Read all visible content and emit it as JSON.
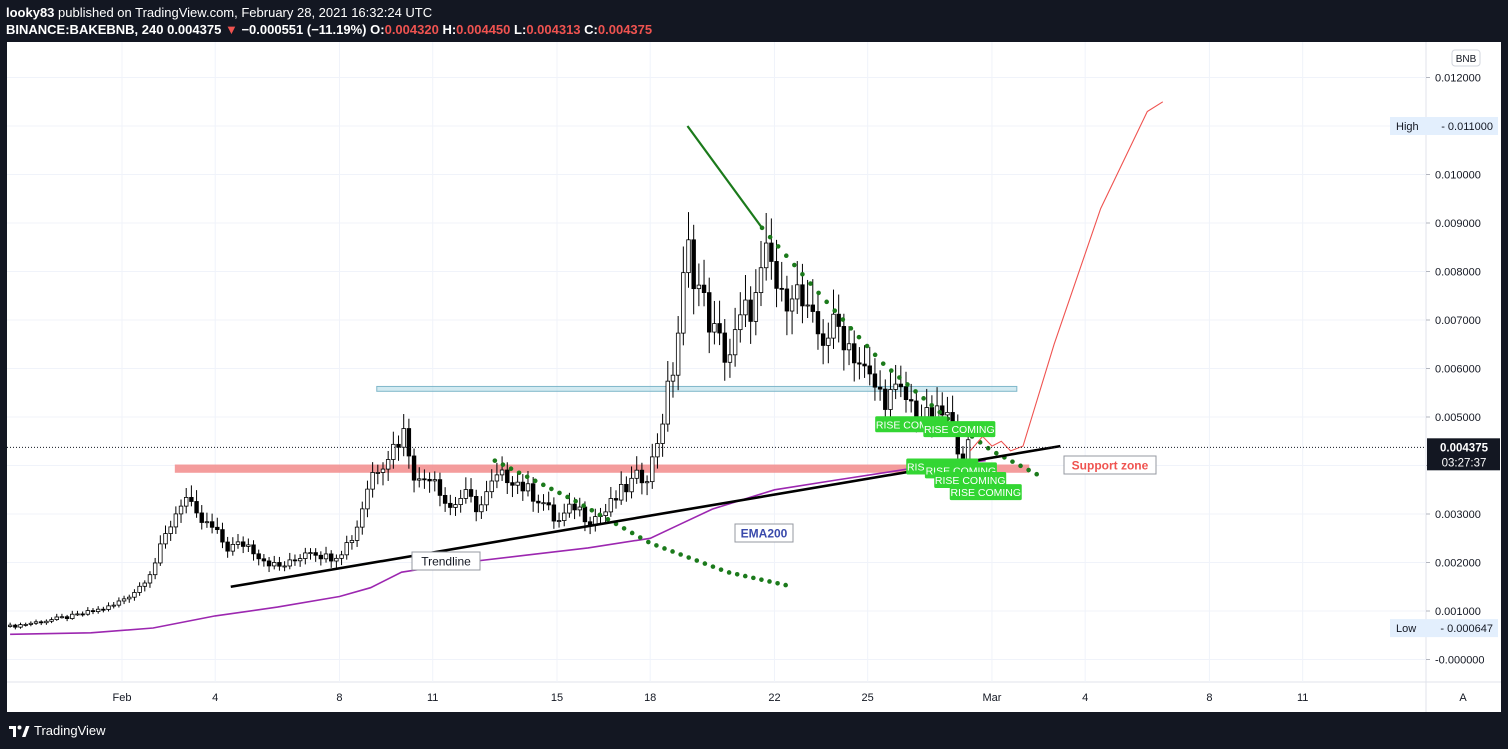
{
  "header": {
    "publisher": "looky83",
    "published_text": " published on TradingView.com, February 28, 2021 16:32:24 UTC",
    "symbol": "BINANCE:BAKEBNB, 240",
    "last": "0.004375",
    "change_arrow": "▼",
    "change": "−0.000551 (−11.19%)",
    "o_label": "O:",
    "o_value": "0.004320",
    "h_label": "H:",
    "h_value": "0.004450",
    "l_label": "L:",
    "l_value": "0.004313",
    "c_label": "C:",
    "c_value": "0.004375"
  },
  "footer": {
    "brand": "TradingView",
    "logo_icon": "tradingview-logo-icon"
  },
  "chart_data": {
    "type": "candlestick",
    "currency_label": "BNB",
    "auto_scale_label": "A",
    "ylim": [
      -0.0002,
      0.0125
    ],
    "y_ticks": [
      "0.012000",
      "0.011000",
      "0.010000",
      "0.009000",
      "0.008000",
      "0.007000",
      "0.006000",
      "0.005000",
      "0.004000",
      "0.003000",
      "0.002000",
      "0.001000",
      "-0.000000"
    ],
    "x_ticks": [
      {
        "label": "Feb",
        "day": 1
      },
      {
        "label": "4",
        "day": 4
      },
      {
        "label": "8",
        "day": 8
      },
      {
        "label": "11",
        "day": 11
      },
      {
        "label": "15",
        "day": 15
      },
      {
        "label": "18",
        "day": 18
      },
      {
        "label": "22",
        "day": 22
      },
      {
        "label": "25",
        "day": 25
      },
      {
        "label": "Mar",
        "day": 29
      },
      {
        "label": "4",
        "day": 32
      },
      {
        "label": "8",
        "day": 36
      },
      {
        "label": "11",
        "day": 39
      }
    ],
    "high_marker": {
      "label": "High",
      "value": "0.011000"
    },
    "low_marker": {
      "label": "Low",
      "value": "0.000647"
    },
    "last_price": {
      "value": "0.004375",
      "countdown": "03:27:37"
    },
    "colors": {
      "up": "#26a69a",
      "down": "#ef5350",
      "candle": "#000000",
      "ema": "#9c27b0",
      "trend": "#000000",
      "dots": "#1b7a1b",
      "projection": "#ef5350",
      "support": "#f28b8b",
      "resistance": "#add8e6"
    },
    "anchors": [
      {
        "day": -2.6,
        "price": 0.00068
      },
      {
        "day": -0.5,
        "price": 0.0009
      },
      {
        "day": 0.7,
        "price": 0.0011
      },
      {
        "day": 1.5,
        "price": 0.00145
      },
      {
        "day": 2.0,
        "price": 0.0019
      },
      {
        "day": 2.5,
        "price": 0.0027
      },
      {
        "day": 3.0,
        "price": 0.0034
      },
      {
        "day": 3.4,
        "price": 0.0029
      },
      {
        "day": 3.9,
        "price": 0.0027
      },
      {
        "day": 4.4,
        "price": 0.0023
      },
      {
        "day": 5.0,
        "price": 0.0024
      },
      {
        "day": 5.5,
        "price": 0.0021
      },
      {
        "day": 6.0,
        "price": 0.0019
      },
      {
        "day": 6.5,
        "price": 0.002
      },
      {
        "day": 7.0,
        "price": 0.0023
      },
      {
        "day": 7.6,
        "price": 0.0021
      },
      {
        "day": 8.0,
        "price": 0.0022
      },
      {
        "day": 8.5,
        "price": 0.0026
      },
      {
        "day": 9.0,
        "price": 0.0038
      },
      {
        "day": 9.5,
        "price": 0.0042
      },
      {
        "day": 10.1,
        "price": 0.0047
      },
      {
        "day": 10.5,
        "price": 0.0036
      },
      {
        "day": 11.0,
        "price": 0.0039
      },
      {
        "day": 11.5,
        "price": 0.0031
      },
      {
        "day": 12.0,
        "price": 0.0034
      },
      {
        "day": 12.5,
        "price": 0.0031
      },
      {
        "day": 13.0,
        "price": 0.0037
      },
      {
        "day": 13.5,
        "price": 0.0038
      },
      {
        "day": 14.0,
        "price": 0.0035
      },
      {
        "day": 14.5,
        "price": 0.0033
      },
      {
        "day": 15.0,
        "price": 0.0028
      },
      {
        "day": 15.6,
        "price": 0.0032
      },
      {
        "day": 16.0,
        "price": 0.0029
      },
      {
        "day": 16.5,
        "price": 0.003
      },
      {
        "day": 17.0,
        "price": 0.0034
      },
      {
        "day": 17.5,
        "price": 0.0037
      },
      {
        "day": 18.0,
        "price": 0.0039
      },
      {
        "day": 18.4,
        "price": 0.005
      },
      {
        "day": 18.8,
        "price": 0.0062
      },
      {
        "day": 19.2,
        "price": 0.0085
      },
      {
        "day": 19.5,
        "price": 0.0078
      },
      {
        "day": 20.0,
        "price": 0.0068
      },
      {
        "day": 20.5,
        "price": 0.0062
      },
      {
        "day": 21.0,
        "price": 0.0071
      },
      {
        "day": 21.4,
        "price": 0.0074
      },
      {
        "day": 21.8,
        "price": 0.0084
      },
      {
        "day": 22.2,
        "price": 0.0073
      },
      {
        "day": 22.6,
        "price": 0.0078
      },
      {
        "day": 23.0,
        "price": 0.0071
      },
      {
        "day": 23.5,
        "price": 0.0066
      },
      {
        "day": 24.0,
        "price": 0.0069
      },
      {
        "day": 24.5,
        "price": 0.0064
      },
      {
        "day": 25.0,
        "price": 0.0058
      },
      {
        "day": 25.5,
        "price": 0.0054
      },
      {
        "day": 26.0,
        "price": 0.0055
      },
      {
        "day": 26.5,
        "price": 0.0052
      },
      {
        "day": 27.0,
        "price": 0.0049
      },
      {
        "day": 27.5,
        "price": 0.0051
      },
      {
        "day": 28.0,
        "price": 0.0043
      },
      {
        "day": 28.3,
        "price": 0.00437
      }
    ],
    "ema200": [
      {
        "day": -2.6,
        "price": 0.00052
      },
      {
        "day": 0,
        "price": 0.00055
      },
      {
        "day": 2,
        "price": 0.00065
      },
      {
        "day": 4,
        "price": 0.0009
      },
      {
        "day": 6,
        "price": 0.00108
      },
      {
        "day": 8,
        "price": 0.0013
      },
      {
        "day": 9,
        "price": 0.00148
      },
      {
        "day": 10,
        "price": 0.0018
      },
      {
        "day": 12,
        "price": 0.002
      },
      {
        "day": 14,
        "price": 0.00215
      },
      {
        "day": 16,
        "price": 0.0023
      },
      {
        "day": 18,
        "price": 0.0025
      },
      {
        "day": 19,
        "price": 0.0028
      },
      {
        "day": 20,
        "price": 0.0031
      },
      {
        "day": 22,
        "price": 0.0035
      },
      {
        "day": 24,
        "price": 0.0037
      },
      {
        "day": 26,
        "price": 0.0039
      },
      {
        "day": 27,
        "price": 0.004
      },
      {
        "day": 28,
        "price": 0.00405
      },
      {
        "day": 28.8,
        "price": 0.0041
      }
    ],
    "trendline": [
      {
        "day": 4.5,
        "price": 0.0015
      },
      {
        "day": 31.2,
        "price": 0.0044
      }
    ],
    "peak_line": [
      {
        "day": 19.2,
        "price": 0.011
      },
      {
        "day": 21.6,
        "price": 0.0089
      }
    ],
    "dotted_curve_1": [
      {
        "day": 13.0,
        "price": 0.0041
      },
      {
        "day": 15.5,
        "price": 0.0033
      },
      {
        "day": 18.0,
        "price": 0.0024
      },
      {
        "day": 20.5,
        "price": 0.0018
      },
      {
        "day": 22.6,
        "price": 0.0015
      }
    ],
    "dotted_curve_2": [
      {
        "day": 21.6,
        "price": 0.0089
      },
      {
        "day": 23.5,
        "price": 0.0075
      },
      {
        "day": 25.5,
        "price": 0.0061
      },
      {
        "day": 27.5,
        "price": 0.005
      },
      {
        "day": 29.0,
        "price": 0.0043
      },
      {
        "day": 30.5,
        "price": 0.0038
      }
    ],
    "projection": [
      {
        "day": 28.3,
        "price": 0.0043
      },
      {
        "day": 28.7,
        "price": 0.0046
      },
      {
        "day": 29.0,
        "price": 0.0044
      },
      {
        "day": 29.3,
        "price": 0.0045
      },
      {
        "day": 29.6,
        "price": 0.0043
      },
      {
        "day": 30.0,
        "price": 0.0044
      },
      {
        "day": 31.0,
        "price": 0.0065
      },
      {
        "day": 32.5,
        "price": 0.0093
      },
      {
        "day": 34.0,
        "price": 0.0113
      },
      {
        "day": 34.5,
        "price": 0.0115
      }
    ],
    "resistance_zone": {
      "from_day": 9.2,
      "to_day": 29.8,
      "price_low": 0.00553,
      "price_high": 0.00563
    },
    "support_zone": {
      "from_day": 2.7,
      "to_day": 30.2,
      "price_low": 0.00385,
      "price_high": 0.00402
    },
    "annotations": {
      "support_label": "Support zone",
      "trendline_label": "Trendline",
      "ema_label": "EMA200",
      "rise_label": "RISE COMING"
    }
  }
}
